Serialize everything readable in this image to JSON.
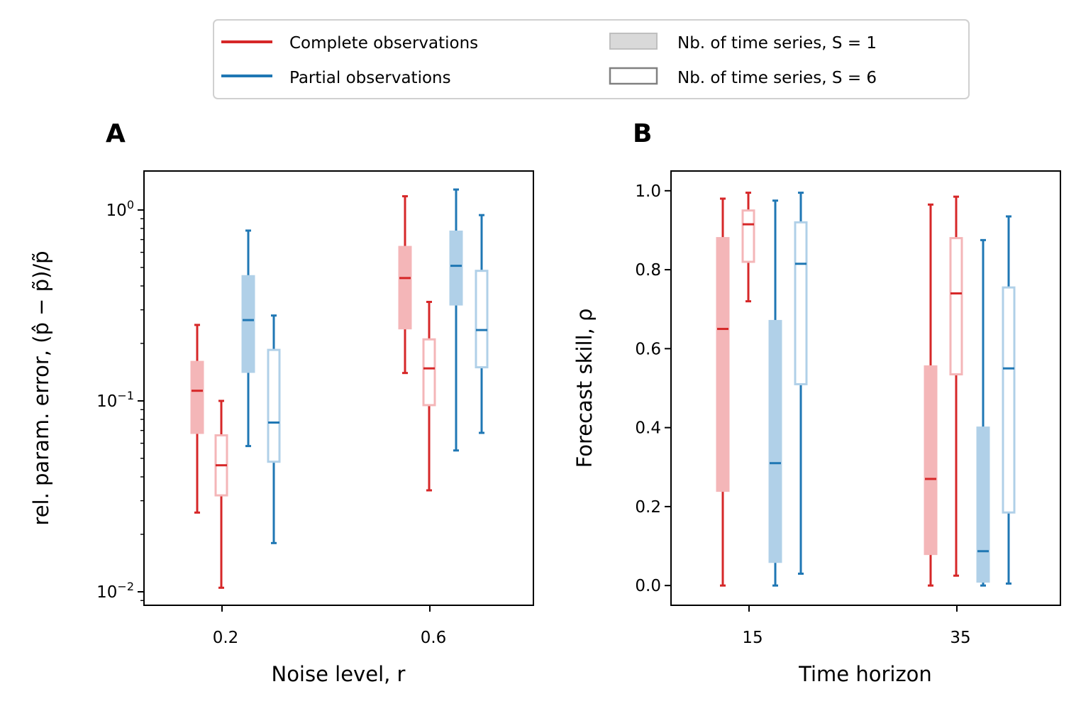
{
  "legend": {
    "entries": [
      {
        "label": "Complete observations",
        "kind": "line",
        "color": "#d62728"
      },
      {
        "label": "Partial observations",
        "kind": "line",
        "color": "#1f77b4"
      },
      {
        "label": "Nb. of time series, S = 1",
        "kind": "filled-box"
      },
      {
        "label": "Nb. of time series, S = 6",
        "kind": "open-box"
      }
    ]
  },
  "colors": {
    "complete": "#d62728",
    "complete_light": "#f4b6b8",
    "partial": "#1f77b4",
    "partial_light": "#b0d0e8"
  },
  "chart_data": [
    {
      "panel": "A",
      "type": "box",
      "xlabel": "Noise level, r",
      "ylabel": "rel. param. error, (p̂ − p̃)/p̃",
      "yscale": "log",
      "ylim": [
        0.0085,
        1.6
      ],
      "yticks": [
        {
          "value": 0.01,
          "base": "10",
          "exp": "−2"
        },
        {
          "value": 0.1,
          "base": "10",
          "exp": "−1"
        },
        {
          "value": 1,
          "base": "10",
          "exp": "0"
        }
      ],
      "categories": [
        "0.2",
        "0.6"
      ],
      "boxes": [
        {
          "category": "0.2",
          "series": "Complete observations",
          "S": 1,
          "whisker_low": 0.026,
          "q1": 0.068,
          "median": 0.113,
          "q3": 0.16,
          "whisker_high": 0.25
        },
        {
          "category": "0.2",
          "series": "Complete observations",
          "S": 6,
          "whisker_low": 0.0105,
          "q1": 0.032,
          "median": 0.046,
          "q3": 0.066,
          "whisker_high": 0.1
        },
        {
          "category": "0.2",
          "series": "Partial observations",
          "S": 1,
          "whisker_low": 0.058,
          "q1": 0.142,
          "median": 0.265,
          "q3": 0.45,
          "whisker_high": 0.78
        },
        {
          "category": "0.2",
          "series": "Partial observations",
          "S": 6,
          "whisker_low": 0.018,
          "q1": 0.048,
          "median": 0.077,
          "q3": 0.185,
          "whisker_high": 0.28
        },
        {
          "category": "0.6",
          "series": "Complete observations",
          "S": 1,
          "whisker_low": 0.14,
          "q1": 0.24,
          "median": 0.44,
          "q3": 0.64,
          "whisker_high": 1.18
        },
        {
          "category": "0.6",
          "series": "Complete observations",
          "S": 6,
          "whisker_low": 0.034,
          "q1": 0.095,
          "median": 0.148,
          "q3": 0.21,
          "whisker_high": 0.33
        },
        {
          "category": "0.6",
          "series": "Partial observations",
          "S": 1,
          "whisker_low": 0.055,
          "q1": 0.32,
          "median": 0.51,
          "q3": 0.77,
          "whisker_high": 1.28
        },
        {
          "category": "0.6",
          "series": "Partial observations",
          "S": 6,
          "whisker_low": 0.068,
          "q1": 0.15,
          "median": 0.235,
          "q3": 0.48,
          "whisker_high": 0.94
        }
      ]
    },
    {
      "panel": "B",
      "type": "box",
      "xlabel": "Time horizon",
      "ylabel": "Forecast skill, ρ",
      "yscale": "linear",
      "ylim": [
        -0.05,
        1.05
      ],
      "yticks": [
        {
          "value": 0.0,
          "label": "0.0"
        },
        {
          "value": 0.2,
          "label": "0.2"
        },
        {
          "value": 0.4,
          "label": "0.4"
        },
        {
          "value": 0.6,
          "label": "0.6"
        },
        {
          "value": 0.8,
          "label": "0.8"
        },
        {
          "value": 1.0,
          "label": "1.0"
        }
      ],
      "categories": [
        "15",
        "35"
      ],
      "boxes": [
        {
          "category": "15",
          "series": "Complete observations",
          "S": 1,
          "whisker_low": 0.0,
          "q1": 0.24,
          "median": 0.65,
          "q3": 0.88,
          "whisker_high": 0.98
        },
        {
          "category": "15",
          "series": "Complete observations",
          "S": 6,
          "whisker_low": 0.72,
          "q1": 0.82,
          "median": 0.915,
          "q3": 0.95,
          "whisker_high": 0.995
        },
        {
          "category": "15",
          "series": "Partial observations",
          "S": 1,
          "whisker_low": 0.0,
          "q1": 0.06,
          "median": 0.31,
          "q3": 0.67,
          "whisker_high": 0.975
        },
        {
          "category": "15",
          "series": "Partial observations",
          "S": 6,
          "whisker_low": 0.03,
          "q1": 0.51,
          "median": 0.815,
          "q3": 0.92,
          "whisker_high": 0.995
        },
        {
          "category": "35",
          "series": "Complete observations",
          "S": 1,
          "whisker_low": 0.0,
          "q1": 0.08,
          "median": 0.27,
          "q3": 0.555,
          "whisker_high": 0.965
        },
        {
          "category": "35",
          "series": "Complete observations",
          "S": 6,
          "whisker_low": 0.025,
          "q1": 0.535,
          "median": 0.74,
          "q3": 0.88,
          "whisker_high": 0.985
        },
        {
          "category": "35",
          "series": "Partial observations",
          "S": 1,
          "whisker_low": 0.0,
          "q1": 0.01,
          "median": 0.087,
          "q3": 0.4,
          "whisker_high": 0.875
        },
        {
          "category": "35",
          "series": "Partial observations",
          "S": 6,
          "whisker_low": 0.005,
          "q1": 0.185,
          "median": 0.55,
          "q3": 0.755,
          "whisker_high": 0.935
        }
      ]
    }
  ]
}
